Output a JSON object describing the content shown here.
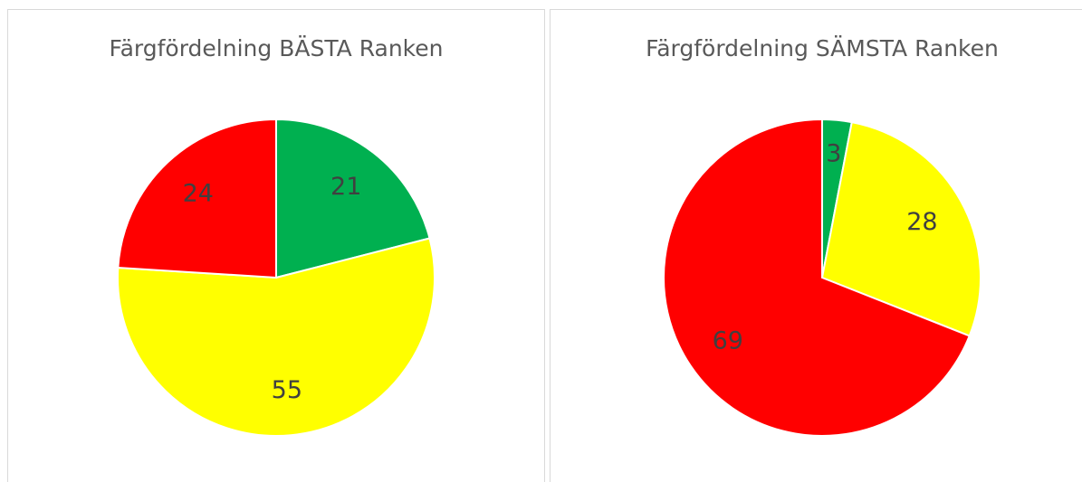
{
  "chart_data": [
    {
      "type": "pie",
      "title": "Färgfördelning BÄSTA Ranken",
      "values": [
        21,
        55,
        24
      ],
      "colors": [
        "#00b050",
        "#ffff00",
        "#ff0000"
      ]
    },
    {
      "type": "pie",
      "title": "Färgfördelning SÄMSTA Ranken",
      "values": [
        3,
        28,
        69
      ],
      "colors": [
        "#00b050",
        "#ffff00",
        "#ff0000"
      ]
    }
  ]
}
